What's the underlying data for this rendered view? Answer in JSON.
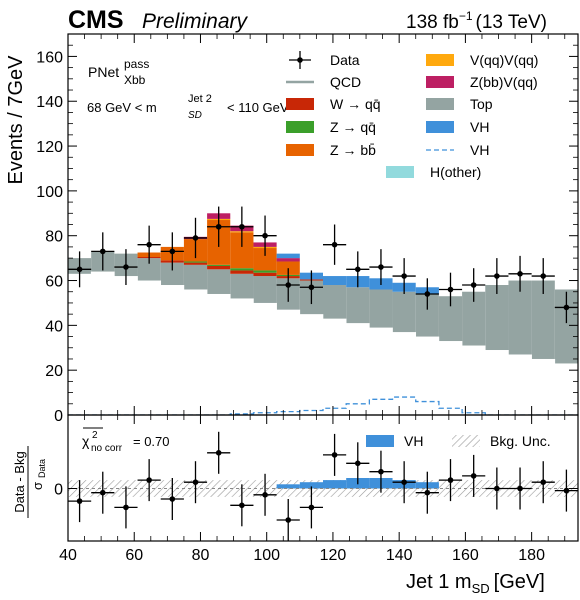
{
  "header": {
    "experiment": "CMS",
    "status": "Preliminary",
    "lumi_value": "138 fb",
    "lumi_exp": "−1",
    "energy": "(13 TeV)"
  },
  "annotations": {
    "tagger_main": "PNet",
    "tagger_sup": "pass",
    "tagger_sub": "Xbb",
    "mass_window_prefix": "68 GeV < m",
    "mass_window_sub": "SD",
    "mass_window_sup": "Jet 2",
    "mass_window_suffix": "< 110 GeV",
    "chi2_prefix": "χ",
    "chi2_sup": "2",
    "chi2_sub": "no corr",
    "chi2_value": "= 0.70"
  },
  "colors": {
    "qcd": "#94a4a2",
    "top": "#94a4a2",
    "wqq": "#c82706",
    "zqq": "#3b9f2a",
    "zbb": "#e76300",
    "vv": "#ffa90e",
    "zbbvqq": "#bd1f63",
    "vh": "#3f90da",
    "hother": "#92dadd"
  },
  "chart_data": [
    {
      "type": "bar",
      "stacked": true,
      "xlabel_main": "Jet 1 m",
      "xlabel_sub": "SD",
      "xlabel_unit": "[GeV]",
      "ylabel": "Events / 7GeV",
      "xlim": [
        40,
        194
      ],
      "ylim": [
        0,
        170
      ],
      "yticks": [
        0,
        20,
        40,
        60,
        80,
        100,
        120,
        140,
        160
      ],
      "bin_edges": [
        40,
        47,
        54,
        61,
        68,
        75,
        82,
        89,
        96,
        103,
        110,
        117,
        124,
        131,
        138,
        145,
        152,
        159,
        166,
        173,
        180,
        187,
        194
      ],
      "legend": [
        {
          "label": "Data",
          "style": "data"
        },
        {
          "label": "V(qq)V(qq)",
          "style": "fill",
          "color_key": "vv"
        },
        {
          "label": "QCD",
          "style": "line",
          "color_key": "qcd"
        },
        {
          "label": "Z(bb)V(qq)",
          "style": "fill",
          "color_key": "zbbvqq"
        },
        {
          "label": "W → qq̄",
          "style": "fill",
          "color_key": "wqq"
        },
        {
          "label": "Top",
          "style": "fill",
          "color_key": "top"
        },
        {
          "label": "Z → qq̄",
          "style": "fill",
          "color_key": "zqq"
        },
        {
          "label": "VH",
          "style": "fill",
          "color_key": "vh"
        },
        {
          "label": "Z → bb̄",
          "style": "fill",
          "color_key": "zbb"
        },
        {
          "label": "VH",
          "style": "dashed",
          "color_key": "vh"
        },
        {
          "label": "H(other)",
          "style": "fill",
          "color_key": "hother"
        }
      ],
      "background_total": [
        70,
        73,
        72,
        72,
        73,
        75,
        75,
        72,
        70,
        67,
        64,
        60,
        57,
        54,
        51,
        48,
        44,
        41,
        37,
        33,
        29,
        26
      ],
      "background_lower": [
        63,
        64,
        62,
        60,
        58,
        56,
        54,
        52,
        50,
        47,
        45,
        43,
        41,
        39,
        37,
        35,
        33,
        31,
        29,
        27,
        25,
        23
      ],
      "series": [
        {
          "name": "Top",
          "color_key": "top",
          "values": [
            70,
            73,
            72,
            70,
            68,
            67,
            65,
            63,
            62,
            61,
            60,
            58,
            57,
            56,
            55,
            54,
            53,
            55,
            58,
            60,
            60,
            56
          ]
        },
        {
          "name": "W → qq̄",
          "color_key": "wqq",
          "values": [
            0,
            0,
            0,
            0.5,
            1,
            1,
            1.5,
            1.5,
            1.5,
            1,
            0.5,
            0,
            0,
            0,
            0,
            0,
            0,
            0,
            0,
            0,
            0,
            0
          ]
        },
        {
          "name": "Z → qq̄",
          "color_key": "zqq",
          "values": [
            0,
            0,
            0,
            0,
            0,
            0.5,
            0.5,
            1,
            1,
            0.5,
            0,
            0,
            0,
            0,
            0,
            0,
            0,
            0,
            0,
            0,
            0,
            0
          ]
        },
        {
          "name": "Z → bb̄",
          "color_key": "zbb",
          "values": [
            0,
            0,
            0,
            2,
            6,
            10,
            20,
            16,
            10,
            6,
            0,
            0,
            0,
            0,
            0,
            0,
            0,
            0,
            0,
            0,
            0,
            0
          ]
        },
        {
          "name": "V(qq)V(qq)",
          "color_key": "vv",
          "values": [
            0,
            0,
            0,
            0,
            0,
            0,
            0.5,
            0.5,
            0.5,
            0,
            0,
            0,
            0,
            0,
            0,
            0,
            0,
            0,
            0,
            0,
            0,
            0
          ]
        },
        {
          "name": "Z(bb)V(qq)",
          "color_key": "zbbvqq",
          "values": [
            0,
            0,
            0,
            0,
            0,
            1,
            2.5,
            2.5,
            2,
            1.5,
            0,
            0,
            0,
            0,
            0,
            0,
            0,
            0,
            0,
            0,
            0,
            0
          ]
        },
        {
          "name": "VH",
          "color_key": "vh",
          "values": [
            0,
            0,
            0,
            0,
            0,
            0,
            0,
            0,
            0,
            2,
            3,
            4,
            5,
            5,
            4,
            3,
            0,
            0,
            0,
            0,
            0,
            0
          ]
        },
        {
          "name": "H(other)",
          "color_key": "hother",
          "values": [
            0,
            0,
            0,
            0,
            0,
            0,
            0,
            0,
            0,
            0,
            0,
            0,
            0,
            0,
            0,
            0,
            0,
            0,
            0,
            0,
            0,
            0
          ]
        }
      ],
      "vh_unstacked": [
        0,
        0,
        0,
        0,
        0,
        0,
        0,
        0.5,
        1,
        1.5,
        2,
        3,
        5,
        7,
        8,
        6,
        3,
        1,
        0,
        0,
        0,
        0
      ],
      "data_points": {
        "x": [
          43.5,
          50.5,
          57.5,
          64.5,
          71.5,
          78.5,
          85.5,
          92.5,
          99.5,
          106.5,
          113.5,
          120.5,
          127.5,
          134.5,
          141.5,
          148.5,
          155.5,
          162.5,
          169.5,
          176.5,
          183.5,
          190.5
        ],
        "y": [
          65,
          73,
          66,
          76,
          73,
          79,
          84,
          84,
          80,
          58,
          57,
          76,
          65,
          66,
          62,
          54,
          56,
          58,
          62,
          63,
          62,
          48
        ],
        "yerr": [
          8,
          8.5,
          8,
          8.5,
          8.5,
          9,
          9,
          9,
          9,
          7.5,
          7.5,
          9,
          8,
          8,
          8,
          7,
          7.5,
          7.5,
          8,
          8,
          8,
          7
        ]
      }
    },
    {
      "type": "scatter",
      "ylabel": "(Data − Bkg) / σData",
      "ylabel_num": "Data - Bkg",
      "ylabel_den_main": "σ",
      "ylabel_den_sub": "Data",
      "xlim": [
        40,
        194
      ],
      "ylim": [
        -2.5,
        3.5
      ],
      "yticks": [
        0
      ],
      "xticks": [
        40,
        60,
        80,
        100,
        120,
        140,
        160,
        180
      ],
      "legend": [
        {
          "label": "VH",
          "style": "fill",
          "color_key": "vh"
        },
        {
          "label": "Bkg. Unc.",
          "style": "hatch"
        }
      ],
      "vh_ratio": [
        0,
        0,
        0,
        0,
        0,
        0,
        0,
        0,
        0,
        0.2,
        0.3,
        0.4,
        0.5,
        0.5,
        0.4,
        0.3,
        0,
        0,
        0,
        0,
        0,
        0
      ],
      "unc_band": [
        0.4,
        0.4,
        0.4,
        0.4,
        0.4,
        0.4,
        0.4,
        0.4,
        0.4,
        0.4,
        0.4,
        0.4,
        0.4,
        0.4,
        0.4,
        0.4,
        0.4,
        0.4,
        0.4,
        0.4,
        0.4,
        0.4
      ],
      "points": {
        "x": [
          43.5,
          50.5,
          57.5,
          64.5,
          71.5,
          78.5,
          85.5,
          92.5,
          99.5,
          106.5,
          113.5,
          120.5,
          127.5,
          134.5,
          141.5,
          148.5,
          155.5,
          162.5,
          169.5,
          176.5,
          183.5,
          190.5
        ],
        "y": [
          -0.6,
          -0.2,
          -0.9,
          0.4,
          -0.5,
          0.3,
          1.7,
          -0.8,
          -0.3,
          -1.5,
          -0.9,
          1.6,
          1.2,
          0.8,
          0.3,
          -0.2,
          0.4,
          0.6,
          0.0,
          0.0,
          0.3,
          -0.1
        ]
      }
    }
  ]
}
